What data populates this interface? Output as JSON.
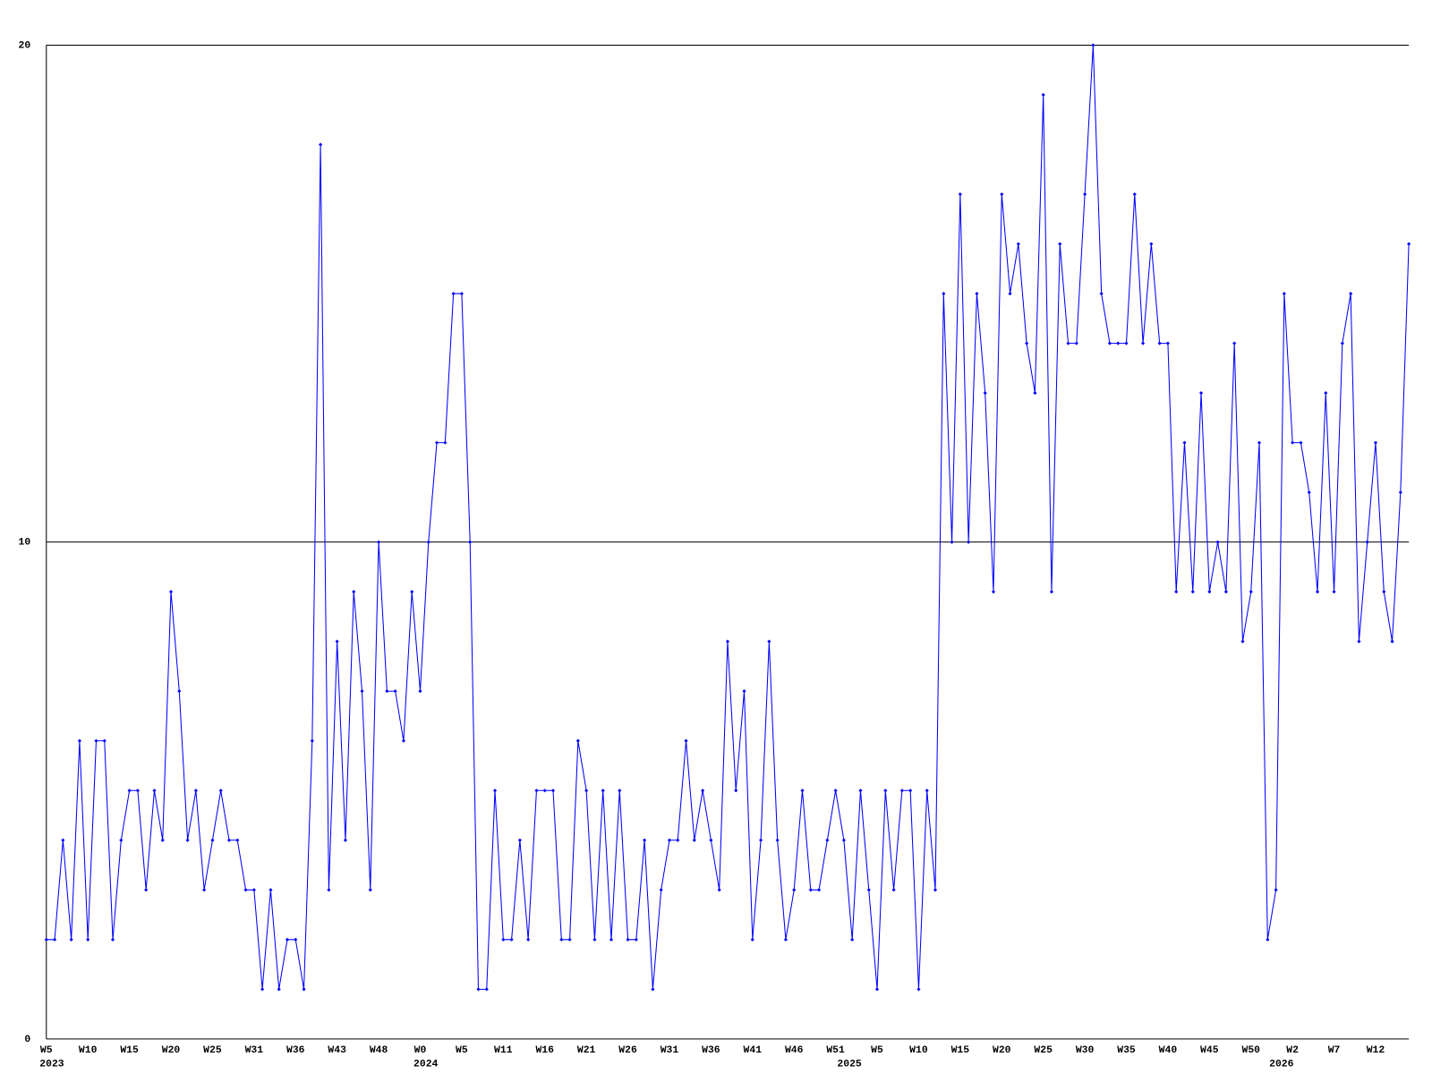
{
  "chart_data": {
    "type": "line",
    "categories": [
      "W5",
      null,
      null,
      null,
      null,
      "W10",
      null,
      null,
      null,
      null,
      "W15",
      null,
      null,
      null,
      null,
      "W20",
      null,
      null,
      null,
      null,
      "W25",
      null,
      null,
      null,
      null,
      "W31",
      null,
      null,
      null,
      null,
      "W36",
      null,
      null,
      null,
      null,
      "W43",
      null,
      null,
      null,
      null,
      "W48",
      null,
      null,
      null,
      null,
      "W0",
      null,
      null,
      null,
      null,
      "W5",
      null,
      null,
      null,
      null,
      "W11",
      null,
      null,
      null,
      null,
      "W16",
      null,
      null,
      null,
      null,
      "W21",
      null,
      null,
      null,
      null,
      "W26",
      null,
      null,
      null,
      null,
      "W31",
      null,
      null,
      null,
      null,
      "W36",
      null,
      null,
      null,
      null,
      "W41",
      null,
      null,
      null,
      null,
      "W46",
      null,
      null,
      null,
      null,
      "W51",
      null,
      null,
      null,
      null,
      "W5",
      null,
      null,
      null,
      null,
      "W10",
      null,
      null,
      null,
      null,
      "W15",
      null,
      null,
      null,
      null,
      "W20",
      null,
      null,
      null,
      null,
      "W25",
      null,
      null,
      null,
      null,
      "W30",
      null,
      null,
      null,
      null,
      "W35",
      null,
      null,
      null,
      null,
      "W40",
      null,
      null,
      null,
      null,
      "W45",
      null,
      null,
      null,
      null,
      "W50",
      null,
      null,
      null,
      null,
      "W2",
      null,
      null,
      null,
      null,
      "W7",
      null,
      null,
      null,
      null,
      "W12",
      null,
      null,
      null,
      null
    ],
    "year_labels": [
      "2023",
      null,
      null,
      null,
      null,
      null,
      null,
      null,
      null,
      null,
      null,
      null,
      null,
      null,
      null,
      null,
      null,
      null,
      null,
      null,
      null,
      null,
      null,
      null,
      null,
      null,
      null,
      null,
      null,
      null,
      null,
      null,
      null,
      null,
      null,
      null,
      null,
      null,
      null,
      null,
      null,
      null,
      null,
      null,
      null,
      "2024",
      null,
      null,
      null,
      null,
      null,
      null,
      null,
      null,
      null,
      null,
      null,
      null,
      null,
      null,
      null,
      null,
      null,
      null,
      null,
      null,
      null,
      null,
      null,
      null,
      null,
      null,
      null,
      null,
      null,
      null,
      null,
      null,
      null,
      null,
      null,
      null,
      null,
      null,
      null,
      null,
      null,
      null,
      null,
      null,
      null,
      null,
      null,
      null,
      null,
      null,
      "2025",
      null,
      null,
      null,
      null,
      null,
      null,
      null,
      null,
      null,
      null,
      null,
      null,
      null,
      null,
      null,
      null,
      null,
      null,
      null,
      null,
      null,
      null,
      null,
      null,
      null,
      null,
      null,
      null,
      null,
      null,
      null,
      null,
      null,
      null,
      null,
      null,
      null,
      null,
      null,
      null,
      null,
      null,
      null,
      null,
      null,
      null,
      null,
      null,
      null,
      null,
      null,
      "2026",
      null,
      null,
      null,
      null,
      null,
      null,
      null,
      null,
      null,
      null,
      null,
      null,
      null,
      null,
      null,
      null
    ],
    "series": [
      {
        "color": "#0000ff",
        "values": [
          2,
          2,
          4,
          2,
          6,
          2,
          6,
          6,
          2,
          4,
          5,
          5,
          3,
          5,
          4,
          9,
          7,
          4,
          5,
          3,
          4,
          5,
          4,
          4,
          3,
          3,
          1,
          3,
          1,
          2,
          2,
          1,
          6,
          18,
          3,
          8,
          4,
          9,
          7,
          3,
          10,
          7,
          7,
          6,
          9,
          7,
          10,
          12,
          12,
          15,
          15,
          10,
          1,
          1,
          5,
          2,
          2,
          4,
          2,
          5,
          5,
          5,
          2,
          2,
          6,
          5,
          2,
          5,
          2,
          5,
          2,
          2,
          4,
          1,
          3,
          4,
          4,
          6,
          4,
          5,
          4,
          3,
          8,
          5,
          7,
          2,
          4,
          8,
          4,
          2,
          3,
          5,
          3,
          3,
          4,
          5,
          4,
          2,
          5,
          3,
          1,
          5,
          3,
          5,
          5,
          1,
          5,
          3,
          15,
          10,
          17,
          10,
          15,
          13,
          9,
          17,
          15,
          16,
          14,
          13,
          19,
          9,
          16,
          14,
          14,
          17,
          20,
          15,
          14,
          14,
          14,
          17,
          14,
          16,
          14,
          14,
          9,
          12,
          9,
          13,
          9,
          10,
          9,
          14,
          8,
          9,
          12,
          2,
          3,
          15,
          12,
          12,
          11,
          9,
          13,
          9,
          14,
          15,
          8,
          10,
          12,
          9,
          8,
          11,
          16
        ]
      }
    ],
    "ylim": [
      0,
      20
    ],
    "yticks": [
      0,
      10,
      20
    ],
    "grid": true
  }
}
